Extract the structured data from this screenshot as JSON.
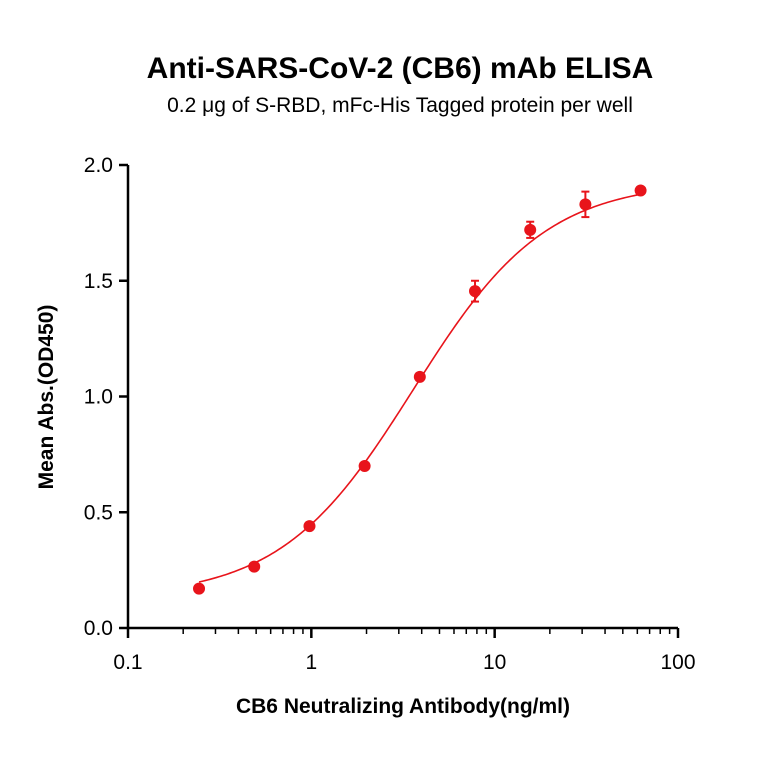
{
  "chart_data": {
    "type": "scatter",
    "title": "Anti-SARS-CoV-2 (CB6) mAb ELISA",
    "subtitle": "0.2 μg of S-RBD, mFc-His Tagged protein per well",
    "xlabel": "CB6 Neutralizing Antibody(ng/ml)",
    "ylabel": "Mean Abs.(OD450)",
    "x_scale": "log",
    "xlim": [
      0.1,
      100
    ],
    "ylim": [
      0,
      2.0
    ],
    "x_ticks": [
      "0.1",
      "1",
      "10",
      "100"
    ],
    "y_ticks": [
      "0.0",
      "0.5",
      "1.0",
      "1.5",
      "2.0"
    ],
    "grid": false,
    "legend": "none",
    "color": "#e8141b",
    "series": [
      {
        "x": [
          0.244,
          0.488,
          0.977,
          1.953,
          3.906,
          7.813,
          15.625,
          31.25,
          62.5
        ],
        "y": [
          0.17,
          0.265,
          0.44,
          0.7,
          1.085,
          1.455,
          1.72,
          1.83,
          1.89
        ],
        "error": [
          0.005,
          0.005,
          0.01,
          0.01,
          0.015,
          0.045,
          0.035,
          0.055,
          0.01
        ],
        "fit": "4PL"
      }
    ]
  }
}
